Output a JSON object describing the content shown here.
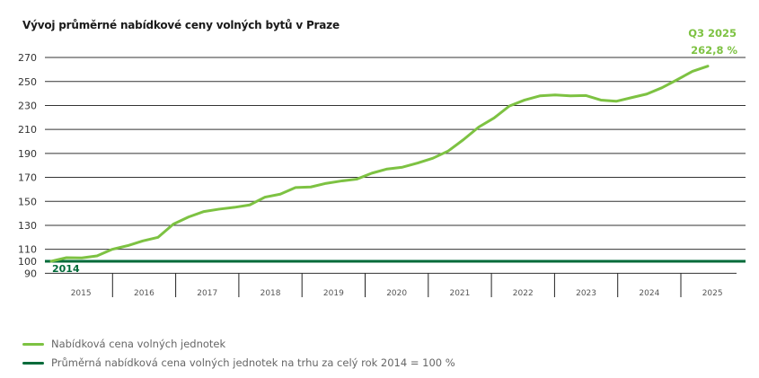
{
  "chart_data": {
    "type": "line",
    "title": "Vývoj průměrné nabídkové ceny volných bytů v Praze",
    "xlabel": "",
    "ylabel": "",
    "y_ticks": [
      90,
      100,
      110,
      130,
      150,
      170,
      190,
      210,
      230,
      250,
      270
    ],
    "ylim": [
      90,
      275
    ],
    "x_categories": [
      "2015",
      "2016",
      "2017",
      "2018",
      "2019",
      "2020",
      "2021",
      "2022",
      "2023",
      "2024",
      "2025"
    ],
    "grid": true,
    "legend_position": "bottom-left",
    "colors": {
      "offer": "#7dc242",
      "baseline": "#006b3a"
    },
    "baseline_label": "2014",
    "baseline_value": 100,
    "end_annotation": {
      "period": "Q3 2025",
      "value_label": "262,8 %"
    },
    "series": [
      {
        "name": "Nabídková cena volných jednotek",
        "x": [
          "2014 Q4",
          "2015 Q1",
          "2015 Q2",
          "2015 Q3",
          "2015 Q4",
          "2016 Q1",
          "2016 Q2",
          "2016 Q3",
          "2016 Q4",
          "2017 Q1",
          "2017 Q2",
          "2017 Q3",
          "2017 Q4",
          "2018 Q1",
          "2018 Q2",
          "2018 Q3",
          "2018 Q4",
          "2019 Q1",
          "2019 Q2",
          "2019 Q3",
          "2019 Q4",
          "2020 Q1",
          "2020 Q2",
          "2020 Q3",
          "2020 Q4",
          "2021 Q1",
          "2021 Q2",
          "2021 Q3",
          "2021 Q4",
          "2022 Q1",
          "2022 Q2",
          "2022 Q3",
          "2022 Q4",
          "2023 Q1",
          "2023 Q2",
          "2023 Q3",
          "2023 Q4",
          "2024 Q1",
          "2024 Q2",
          "2024 Q3",
          "2024 Q4",
          "2025 Q1",
          "2025 Q2",
          "2025 Q3"
        ],
        "values": [
          100,
          103,
          102.8,
          104.5,
          110,
          113,
          117,
          120,
          131,
          137,
          141.5,
          143.5,
          145,
          147,
          153.5,
          156,
          161.5,
          162,
          165,
          167,
          168.5,
          173.5,
          177,
          178.5,
          182,
          186,
          192,
          201.5,
          212,
          219.5,
          229.5,
          234.5,
          238,
          238.8,
          238,
          238.3,
          234.5,
          233.5,
          236.5,
          239.5,
          244.8,
          251.5,
          258.5,
          262.8
        ]
      },
      {
        "name": "Průměrná nabídková cena volných jednotek na trhu za celý rok 2014 = 100 %",
        "values": [
          100
        ]
      }
    ]
  }
}
